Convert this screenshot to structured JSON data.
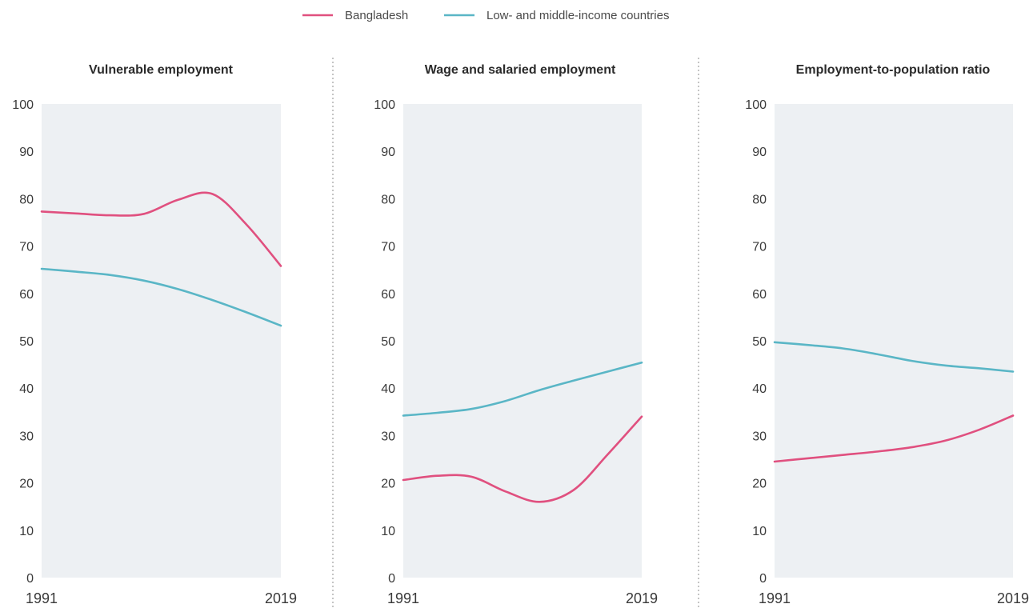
{
  "colors": {
    "bangladesh": "#e0507f",
    "lmic": "#5ab6c6",
    "plot_bg": "#edf0f3",
    "divider": "#8a8a8a"
  },
  "legend": [
    {
      "name": "Bangladesh",
      "color": "#e0507f"
    },
    {
      "name": "Low- and middle-income countries",
      "color": "#5ab6c6"
    }
  ],
  "chart_data": [
    {
      "type": "line",
      "title": "Vulnerable employment",
      "xlabel": "",
      "ylabel": "",
      "ylim": [
        0,
        100
      ],
      "yticks": [
        0,
        10,
        20,
        30,
        40,
        50,
        60,
        70,
        80,
        90,
        100
      ],
      "xticks": [
        "1991",
        "2019"
      ],
      "x": [
        1991,
        1995,
        1999,
        2003,
        2007,
        2011,
        2015,
        2019
      ],
      "grid": false,
      "legend_position": "top-center",
      "series": [
        {
          "name": "Bangladesh",
          "color": "#e0507f",
          "values": [
            77.3,
            76.9,
            76.5,
            76.8,
            79.8,
            81.0,
            74.5,
            65.8
          ]
        },
        {
          "name": "Low- and middle-income countries",
          "color": "#5ab6c6",
          "values": [
            65.2,
            64.6,
            63.9,
            62.7,
            60.9,
            58.6,
            56.0,
            53.2
          ]
        }
      ]
    },
    {
      "type": "line",
      "title": "Wage and salaried employment",
      "xlabel": "",
      "ylabel": "",
      "ylim": [
        0,
        100
      ],
      "yticks": [
        0,
        10,
        20,
        30,
        40,
        50,
        60,
        70,
        80,
        90,
        100
      ],
      "xticks": [
        "1991",
        "2019"
      ],
      "x": [
        1991,
        1995,
        1999,
        2003,
        2007,
        2011,
        2015,
        2019
      ],
      "grid": false,
      "legend_position": "top-center",
      "series": [
        {
          "name": "Bangladesh",
          "color": "#e0507f",
          "values": [
            20.6,
            21.5,
            21.3,
            18.2,
            16.0,
            18.5,
            26.0,
            34.0
          ]
        },
        {
          "name": "Low- and middle-income countries",
          "color": "#5ab6c6",
          "values": [
            34.2,
            34.8,
            35.6,
            37.3,
            39.6,
            41.6,
            43.5,
            45.4
          ]
        }
      ]
    },
    {
      "type": "line",
      "title": "Employment-to-population ratio",
      "xlabel": "",
      "ylabel": "",
      "ylim": [
        0,
        100
      ],
      "yticks": [
        0,
        10,
        20,
        30,
        40,
        50,
        60,
        70,
        80,
        90,
        100
      ],
      "xticks": [
        "1991",
        "2019"
      ],
      "x": [
        1991,
        1995,
        1999,
        2003,
        2007,
        2011,
        2015,
        2019
      ],
      "grid": false,
      "legend_position": "top-center",
      "series": [
        {
          "name": "Bangladesh",
          "color": "#e0507f",
          "values": [
            24.5,
            25.2,
            25.9,
            26.6,
            27.5,
            28.9,
            31.2,
            34.2
          ]
        },
        {
          "name": "Low- and middle-income countries",
          "color": "#5ab6c6",
          "values": [
            49.7,
            49.1,
            48.4,
            47.2,
            45.8,
            44.8,
            44.2,
            43.5
          ]
        }
      ]
    }
  ]
}
